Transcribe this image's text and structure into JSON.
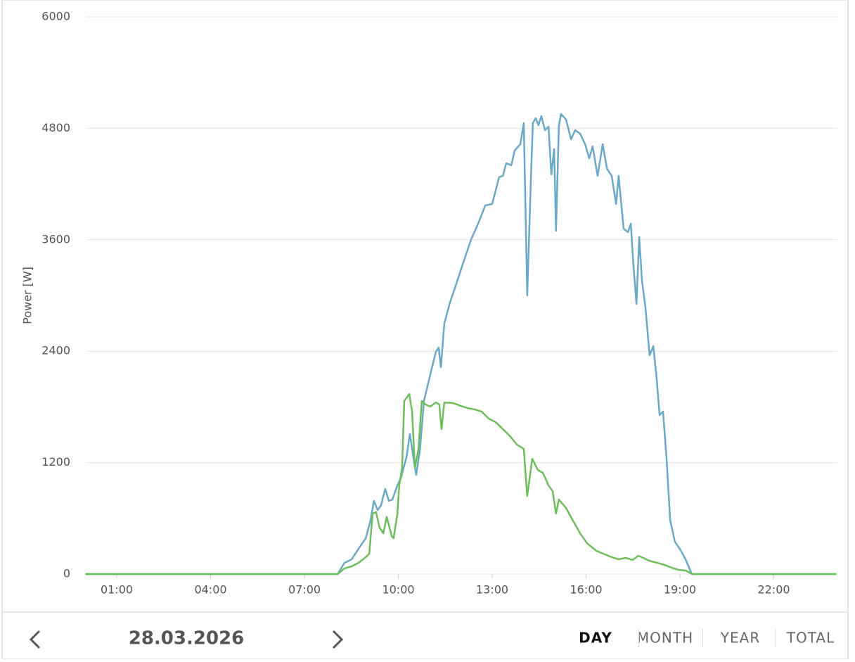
{
  "chart_data": {
    "type": "line",
    "y_label": "Power [W]",
    "xlim": [
      0,
      24
    ],
    "xticks": [
      {
        "value": 1,
        "label": "01:00"
      },
      {
        "value": 4,
        "label": "04:00"
      },
      {
        "value": 7,
        "label": "07:00"
      },
      {
        "value": 10,
        "label": "10:00"
      },
      {
        "value": 13,
        "label": "13:00"
      },
      {
        "value": 16,
        "label": "16:00"
      },
      {
        "value": 19,
        "label": "19:00"
      },
      {
        "value": 22,
        "label": "22:00"
      }
    ],
    "ylim": [
      0,
      6000
    ],
    "yticks": [
      0,
      1200,
      2400,
      3600,
      4800,
      6000
    ],
    "grid": true,
    "series": [
      {
        "color": "#6aaac8",
        "x": [
          0,
          8.06,
          8.28,
          8.51,
          8.73,
          8.96,
          9.11,
          9.22,
          9.34,
          9.45,
          9.58,
          9.7,
          9.81,
          9.97,
          10.08,
          10.26,
          10.37,
          10.48,
          10.57,
          10.69,
          10.82,
          10.98,
          11.2,
          11.29,
          11.36,
          11.47,
          11.65,
          11.88,
          12.1,
          12.33,
          12.55,
          12.78,
          13,
          13.22,
          13.34,
          13.45,
          13.61,
          13.72,
          13.9,
          14.01,
          14.12,
          14.24,
          14.3,
          14.39,
          14.48,
          14.57,
          14.69,
          14.8,
          14.89,
          14.98,
          15.04,
          15.13,
          15.2,
          15.36,
          15.52,
          15.65,
          15.81,
          15.97,
          16.1,
          16.21,
          16.37,
          16.53,
          16.67,
          16.82,
          16.96,
          17.04,
          17.2,
          17.34,
          17.43,
          17.52,
          17.61,
          17.7,
          17.79,
          17.9,
          18.03,
          18.15,
          18.26,
          18.35,
          18.46,
          18.57,
          18.69,
          18.84,
          19.02,
          19.18,
          19.38,
          24
        ],
        "values": [
          0,
          0,
          121,
          159,
          273,
          386,
          576,
          788,
          689,
          742,
          917,
          788,
          803,
          955,
          1030,
          1258,
          1508,
          1258,
          1068,
          1333,
          1864,
          2091,
          2394,
          2439,
          2227,
          2697,
          2924,
          3152,
          3379,
          3606,
          3773,
          3970,
          3985,
          4273,
          4288,
          4424,
          4402,
          4561,
          4629,
          4856,
          3000,
          4288,
          4856,
          4909,
          4833,
          4932,
          4780,
          4818,
          4303,
          4576,
          3697,
          4818,
          4955,
          4894,
          4682,
          4780,
          4742,
          4629,
          4477,
          4606,
          4288,
          4629,
          4364,
          4288,
          3985,
          4288,
          3720,
          3682,
          3773,
          3303,
          2909,
          3629,
          3152,
          2864,
          2356,
          2455,
          2091,
          1712,
          1750,
          1258,
          576,
          348,
          258,
          159,
          0,
          0
        ]
      },
      {
        "color": "#6cbf5a",
        "x": [
          0,
          8.06,
          8.28,
          8.51,
          8.73,
          8.96,
          9.07,
          9.18,
          9.29,
          9.4,
          9.52,
          9.63,
          9.79,
          9.85,
          9.97,
          10.03,
          10.12,
          10.19,
          10.35,
          10.44,
          10.53,
          10.64,
          10.75,
          10.87,
          11.02,
          11.2,
          11.31,
          11.38,
          11.47,
          11.76,
          11.99,
          12.21,
          12.44,
          12.66,
          12.89,
          13.11,
          13.34,
          13.57,
          13.79,
          14.01,
          14.12,
          14.28,
          14.46,
          14.62,
          14.8,
          14.93,
          15.04,
          15.13,
          15.36,
          15.58,
          15.81,
          16.03,
          16.33,
          16.6,
          16.82,
          17.04,
          17.27,
          17.49,
          17.67,
          17.83,
          18.01,
          18.28,
          18.51,
          18.74,
          18.96,
          19.18,
          19.4,
          24
        ],
        "values": [
          0,
          0,
          61,
          83,
          121,
          182,
          220,
          652,
          667,
          500,
          439,
          614,
          409,
          386,
          652,
          955,
          1144,
          1864,
          1939,
          1750,
          1144,
          1333,
          1864,
          1826,
          1803,
          1848,
          1826,
          1561,
          1848,
          1841,
          1811,
          1788,
          1773,
          1750,
          1674,
          1636,
          1561,
          1485,
          1394,
          1348,
          841,
          1242,
          1121,
          1091,
          955,
          894,
          652,
          803,
          712,
          576,
          439,
          333,
          250,
          212,
          182,
          159,
          174,
          152,
          197,
          174,
          144,
          121,
          98,
          68,
          45,
          38,
          0,
          0
        ]
      }
    ]
  },
  "footer": {
    "date": "28.03.2026",
    "tabs": [
      "DAY",
      "MONTH",
      "YEAR",
      "TOTAL"
    ]
  }
}
